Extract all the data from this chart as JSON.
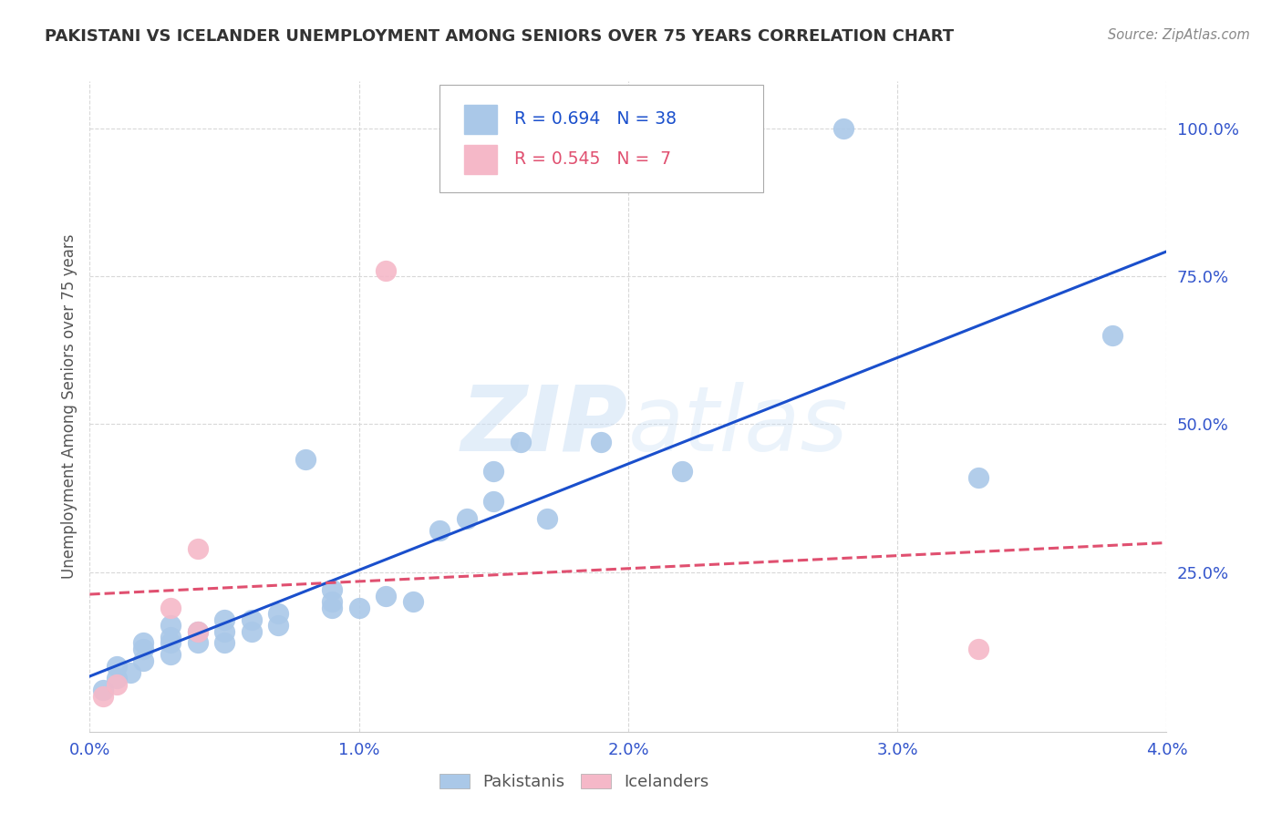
{
  "title": "PAKISTANI VS ICELANDER UNEMPLOYMENT AMONG SENIORS OVER 75 YEARS CORRELATION CHART",
  "source": "Source: ZipAtlas.com",
  "ylabel": "Unemployment Among Seniors over 75 years",
  "xlim": [
    0.0,
    0.04
  ],
  "ylim": [
    -0.02,
    1.08
  ],
  "xtick_labels": [
    "0.0%",
    "1.0%",
    "2.0%",
    "3.0%",
    "4.0%"
  ],
  "xtick_vals": [
    0.0,
    0.01,
    0.02,
    0.03,
    0.04
  ],
  "ytick_labels": [
    "25.0%",
    "50.0%",
    "75.0%",
    "100.0%"
  ],
  "ytick_vals": [
    0.25,
    0.5,
    0.75,
    1.0
  ],
  "pakistani_x": [
    0.0005,
    0.001,
    0.001,
    0.0015,
    0.002,
    0.002,
    0.002,
    0.003,
    0.003,
    0.003,
    0.003,
    0.004,
    0.004,
    0.005,
    0.005,
    0.005,
    0.006,
    0.006,
    0.007,
    0.007,
    0.008,
    0.009,
    0.009,
    0.009,
    0.01,
    0.011,
    0.012,
    0.013,
    0.014,
    0.015,
    0.015,
    0.016,
    0.017,
    0.019,
    0.022,
    0.028,
    0.033,
    0.038
  ],
  "pakistani_y": [
    0.05,
    0.07,
    0.09,
    0.08,
    0.1,
    0.12,
    0.13,
    0.11,
    0.13,
    0.14,
    0.16,
    0.13,
    0.15,
    0.13,
    0.15,
    0.17,
    0.15,
    0.17,
    0.16,
    0.18,
    0.44,
    0.19,
    0.2,
    0.22,
    0.19,
    0.21,
    0.2,
    0.32,
    0.34,
    0.37,
    0.42,
    0.47,
    0.34,
    0.47,
    0.42,
    1.0,
    0.41,
    0.65
  ],
  "icelander_x": [
    0.0005,
    0.001,
    0.003,
    0.004,
    0.004,
    0.011,
    0.033
  ],
  "icelander_y": [
    0.04,
    0.06,
    0.19,
    0.15,
    0.29,
    0.76,
    0.12
  ],
  "pakr": 0.694,
  "pakn": 38,
  "icer": 0.545,
  "icen": 7,
  "pak_color": "#aac8e8",
  "ice_color": "#f5b8c8",
  "pak_line_color": "#1a4fcc",
  "ice_line_color": "#e05070",
  "pak_line_style": "-",
  "ice_line_style": "--",
  "watermark": "ZIPatlas",
  "background_color": "#ffffff",
  "grid_color": "#d8d8d8",
  "title_color": "#333333",
  "source_color": "#888888",
  "ylabel_color": "#555555",
  "tick_color": "#3355cc"
}
